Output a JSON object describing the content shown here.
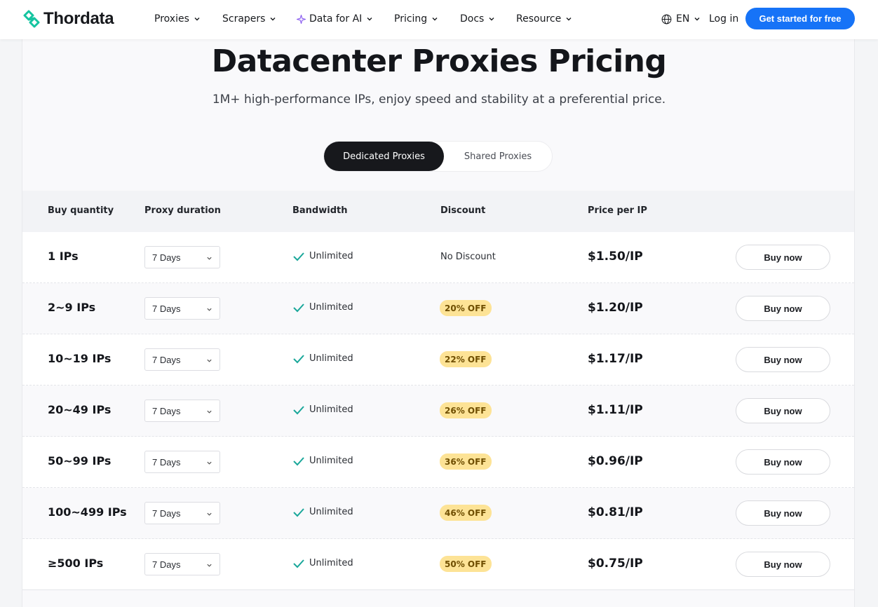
{
  "brand": {
    "name": "Thordata",
    "accent": "#1673f7",
    "logo_color": "#14c4a0"
  },
  "nav": {
    "items": [
      {
        "label": "Proxies",
        "icon": "chevron-down-icon"
      },
      {
        "label": "Scrapers",
        "icon": "chevron-down-icon"
      },
      {
        "label": "Data for AI",
        "icon": "chevron-down-icon",
        "leading_icon": "sparkle-icon"
      },
      {
        "label": "Pricing",
        "icon": "chevron-down-icon"
      },
      {
        "label": "Docs",
        "icon": "chevron-down-icon"
      },
      {
        "label": "Resource",
        "icon": "chevron-down-icon"
      }
    ],
    "language": "EN",
    "login": "Log in",
    "cta": "Get started for free"
  },
  "hero": {
    "title": "Datacenter Proxies Pricing",
    "subtitle": "1M+ high-performance IPs, enjoy speed and stability at a preferential price."
  },
  "tabs": [
    {
      "label": "Dedicated Proxies",
      "active": true
    },
    {
      "label": "Shared Proxies",
      "active": false
    }
  ],
  "table": {
    "headers": [
      "Buy quantity",
      "Proxy duration",
      "Bandwidth",
      "Discount",
      "Price per IP"
    ],
    "rows": [
      {
        "quantity": "1 IPs",
        "duration": "7 Days",
        "bandwidth": "Unlimited",
        "discount": "No Discount",
        "discount_badge": false,
        "price": "$1.50/IP",
        "action": "Buy now"
      },
      {
        "quantity": "2~9 IPs",
        "duration": "7 Days",
        "bandwidth": "Unlimited",
        "discount": "20% OFF",
        "discount_badge": true,
        "price": "$1.20/IP",
        "action": "Buy now"
      },
      {
        "quantity": "10~19 IPs",
        "duration": "7 Days",
        "bandwidth": "Unlimited",
        "discount": "22% OFF",
        "discount_badge": true,
        "price": "$1.17/IP",
        "action": "Buy now"
      },
      {
        "quantity": "20~49 IPs",
        "duration": "7 Days",
        "bandwidth": "Unlimited",
        "discount": "26% OFF",
        "discount_badge": true,
        "price": "$1.11/IP",
        "action": "Buy now"
      },
      {
        "quantity": "50~99 IPs",
        "duration": "7 Days",
        "bandwidth": "Unlimited",
        "discount": "36% OFF",
        "discount_badge": true,
        "price": "$0.96/IP",
        "action": "Buy now"
      },
      {
        "quantity": "100~499 IPs",
        "duration": "7 Days",
        "bandwidth": "Unlimited",
        "discount": "46% OFF",
        "discount_badge": true,
        "price": "$0.81/IP",
        "action": "Buy now"
      },
      {
        "quantity": "≥500 IPs",
        "duration": "7 Days",
        "bandwidth": "Unlimited",
        "discount": "50% OFF",
        "discount_badge": true,
        "price": "$0.75/IP",
        "action": "Buy now"
      }
    ]
  },
  "colors": {
    "badge_bg": "#fde396",
    "check": "#1aa79a",
    "dark_tab": "#17181c"
  }
}
